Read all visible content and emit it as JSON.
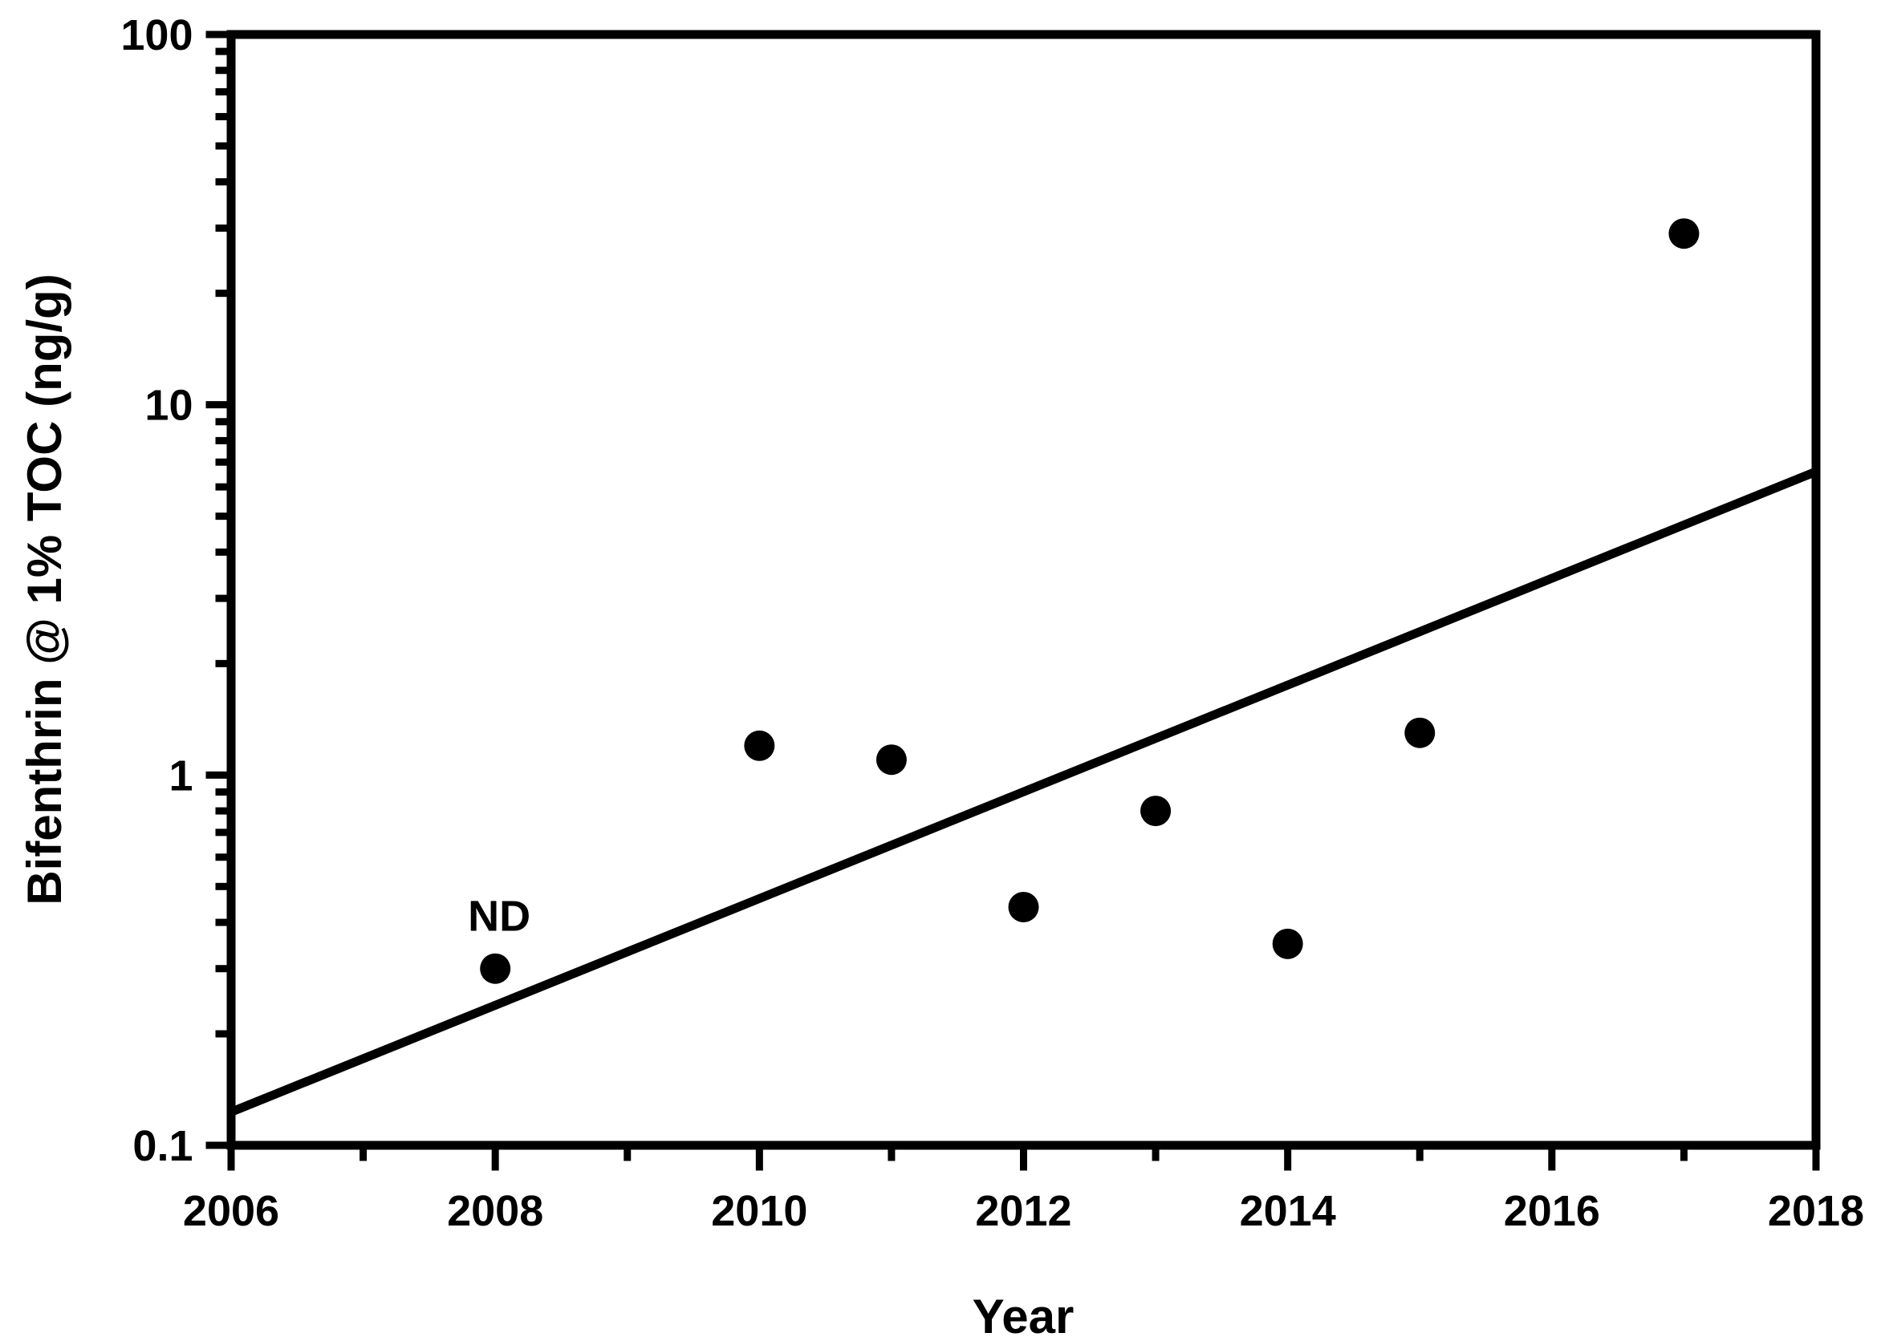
{
  "chart_data": {
    "type": "scatter",
    "title": "",
    "xlabel": "Year",
    "ylabel": "Bifenthrin @ 1% TOC (ng/g)",
    "xlim": [
      2006,
      2018
    ],
    "ylim": [
      0.1,
      100
    ],
    "y_scale": "log",
    "x_major_ticks": [
      2006,
      2008,
      2010,
      2012,
      2014,
      2016,
      2018
    ],
    "x_major_tick_labels": [
      "2006",
      "2008",
      "2010",
      "2012",
      "2014",
      "2016",
      "2018"
    ],
    "x_minor_ticks": [
      2007,
      2009,
      2011,
      2013,
      2015,
      2017
    ],
    "y_major_ticks": [
      0.1,
      1,
      10,
      100
    ],
    "y_major_tick_labels": [
      "0.1",
      "1",
      "10",
      "100"
    ],
    "grid": false,
    "legend": false,
    "background_color": "#ffffff",
    "axis_color": "#000000",
    "series": [
      {
        "name": "Bifenthrin @ 1% TOC",
        "marker": "filled-circle",
        "color": "#000000",
        "points": [
          {
            "x": 2008,
            "y": 0.3,
            "label": "ND"
          },
          {
            "x": 2010,
            "y": 1.2
          },
          {
            "x": 2011,
            "y": 1.1
          },
          {
            "x": 2012,
            "y": 0.44
          },
          {
            "x": 2013,
            "y": 0.8
          },
          {
            "x": 2014,
            "y": 0.35
          },
          {
            "x": 2015,
            "y": 1.3
          },
          {
            "x": 2017,
            "y": 29
          }
        ]
      }
    ],
    "trend_line": {
      "x1": 2006,
      "y1": 0.123,
      "x2": 2018,
      "y2": 6.6,
      "color": "#000000"
    },
    "annotations": [
      {
        "text": "ND",
        "attached_to_point": {
          "x": 2008,
          "y": 0.3
        }
      }
    ]
  }
}
